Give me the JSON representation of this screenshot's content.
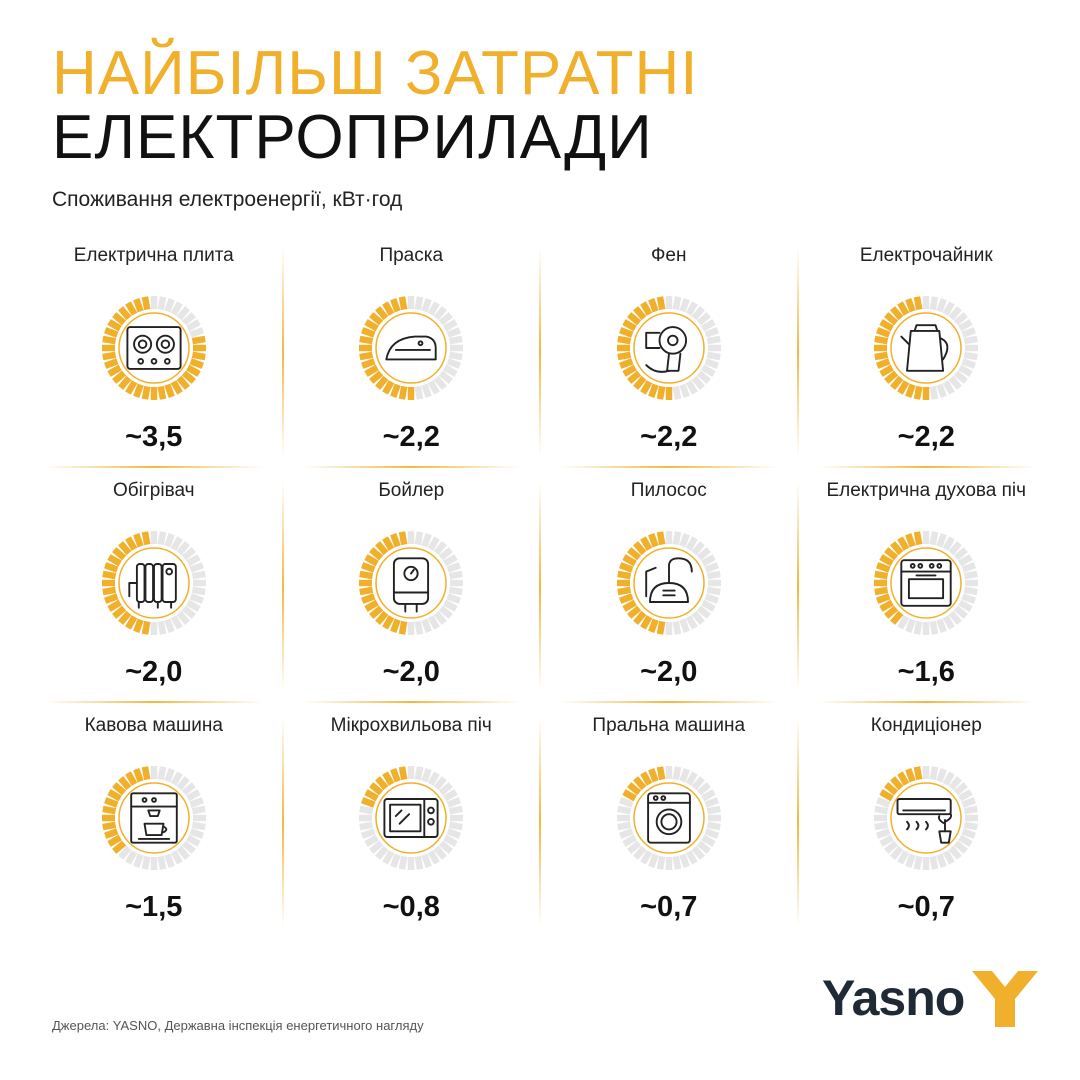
{
  "title_line1": "НАЙБІЛЬШ ЗАТРАТНІ",
  "title_line2": "ЕЛЕКТРОПРИЛАДИ",
  "subtitle": "Споживання електроенергії, кВт·год",
  "colors": {
    "accent": "#F1B02C",
    "inactive": "#E6E6E6",
    "text": "#111111"
  },
  "chart_data": {
    "type": "table",
    "title": "НАЙБІЛЬШ ЗАТРАТНІ ЕЛЕКТРОПРИЛАДИ",
    "subtitle": "Споживання електроенергії, кВт·год",
    "items": [
      {
        "label": "Електрична плита",
        "value": 3.5,
        "value_label": "~3,5",
        "icon": "stove-icon",
        "fill": 0.78
      },
      {
        "label": "Праска",
        "value": 2.2,
        "value_label": "~2,2",
        "icon": "iron-icon",
        "fill": 0.5
      },
      {
        "label": "Фен",
        "value": 2.2,
        "value_label": "~2,2",
        "icon": "hair-dryer-icon",
        "fill": 0.5
      },
      {
        "label": "Електрочайник",
        "value": 2.2,
        "value_label": "~2,2",
        "icon": "kettle-icon",
        "fill": 0.5
      },
      {
        "label": "Обігрівач",
        "value": 2.0,
        "value_label": "~2,0",
        "icon": "heater-icon",
        "fill": 0.46
      },
      {
        "label": "Бойлер",
        "value": 2.0,
        "value_label": "~2,0",
        "icon": "boiler-icon",
        "fill": 0.46
      },
      {
        "label": "Пилосос",
        "value": 2.0,
        "value_label": "~2,0",
        "icon": "vacuum-cleaner-icon",
        "fill": 0.46
      },
      {
        "label": "Електрична духова піч",
        "value": 1.6,
        "value_label": "~1,6",
        "icon": "oven-icon",
        "fill": 0.38
      },
      {
        "label": "Кавова машина",
        "value": 1.5,
        "value_label": "~1,5",
        "icon": "coffee-machine-icon",
        "fill": 0.36
      },
      {
        "label": "Мікрохвильова піч",
        "value": 0.8,
        "value_label": "~0,8",
        "icon": "microwave-icon",
        "fill": 0.2
      },
      {
        "label": "Пральна машина",
        "value": 0.7,
        "value_label": "~0,7",
        "icon": "washing-machine-icon",
        "fill": 0.18
      },
      {
        "label": "Кондиціонер",
        "value": 0.7,
        "value_label": "~0,7",
        "icon": "air-conditioner-icon",
        "fill": 0.18
      }
    ]
  },
  "source": "Джерела: YASNO, Державна інспекція енергетичного нагляду",
  "logo_text": "Yasno"
}
